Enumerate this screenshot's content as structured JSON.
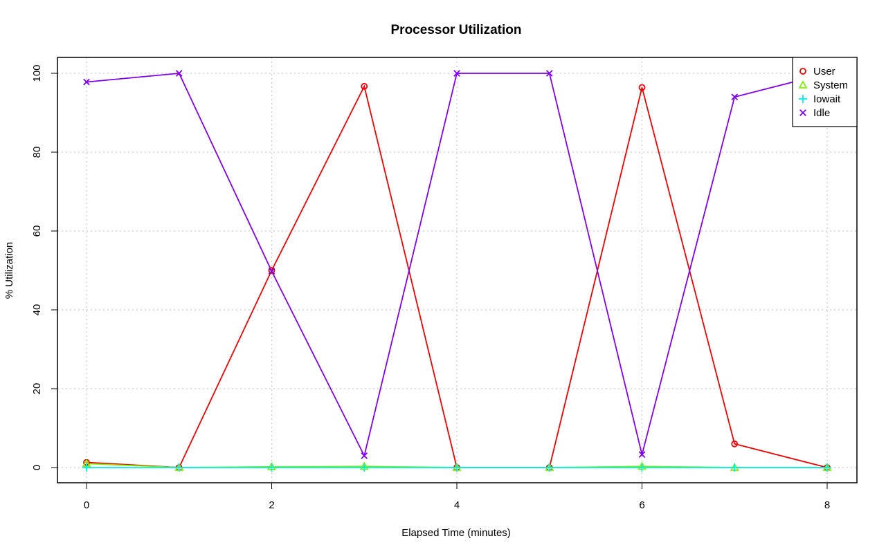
{
  "chart_data": {
    "type": "line",
    "title": "Processor Utilization",
    "xlabel": "Elapsed Time (minutes)",
    "ylabel": "% Utilization",
    "xlim": [
      0,
      8
    ],
    "ylim": [
      0,
      100
    ],
    "x_ticks": [
      0,
      2,
      4,
      6,
      8
    ],
    "y_ticks": [
      0,
      20,
      40,
      60,
      80,
      100
    ],
    "grid": true,
    "legend_position": "top-right",
    "x": [
      0,
      1,
      2,
      3,
      4,
      5,
      6,
      7,
      8
    ],
    "series": [
      {
        "name": "User",
        "color": "#ee0000",
        "marker": "circle",
        "values": [
          1.3,
          0,
          50,
          96.7,
          0,
          0,
          96.4,
          6,
          0
        ]
      },
      {
        "name": "System",
        "color": "#80ee00",
        "marker": "triangle",
        "values": [
          1.0,
          0,
          0.2,
          0.3,
          0,
          0,
          0.3,
          0,
          0
        ]
      },
      {
        "name": "Iowait",
        "color": "#00eeee",
        "marker": "plus",
        "values": [
          0,
          0,
          0,
          0,
          0,
          0,
          0,
          0,
          0
        ]
      },
      {
        "name": "Idle",
        "color": "#8000ee",
        "marker": "cross",
        "values": [
          97.8,
          100,
          49.8,
          3,
          100,
          100,
          3.3,
          94,
          100
        ]
      }
    ]
  }
}
